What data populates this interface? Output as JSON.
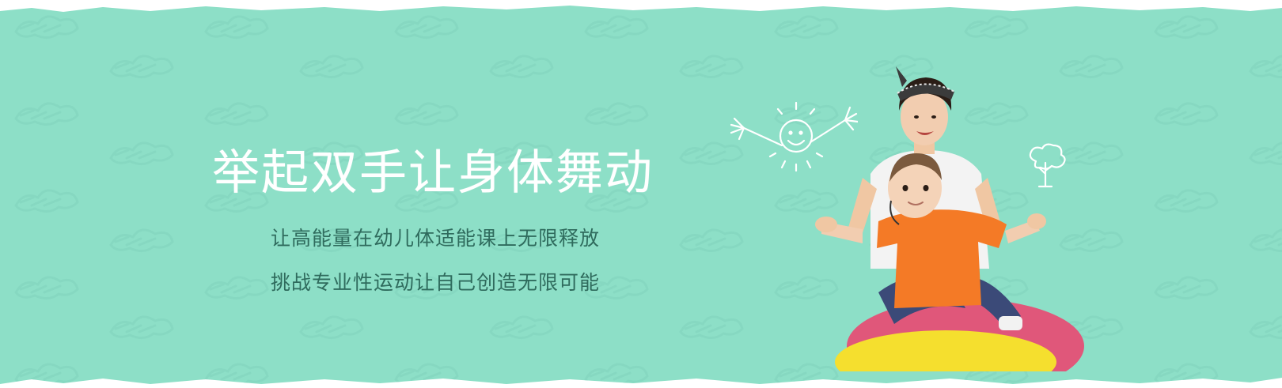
{
  "banner": {
    "headline": "举起双手让身体舞动",
    "subline_1": "让高能量在幼儿体适能课上无限释放",
    "subline_2": "挑战专业性运动让自己创造无限可能"
  },
  "colors": {
    "background": "#8ddfc7",
    "pattern": "#7fd2bb",
    "headline": "#ffffff",
    "subtext": "#2f6b5d"
  },
  "icons": {
    "doodle_1": "sun-face-doodle",
    "doodle_2": "tree-doodle"
  }
}
